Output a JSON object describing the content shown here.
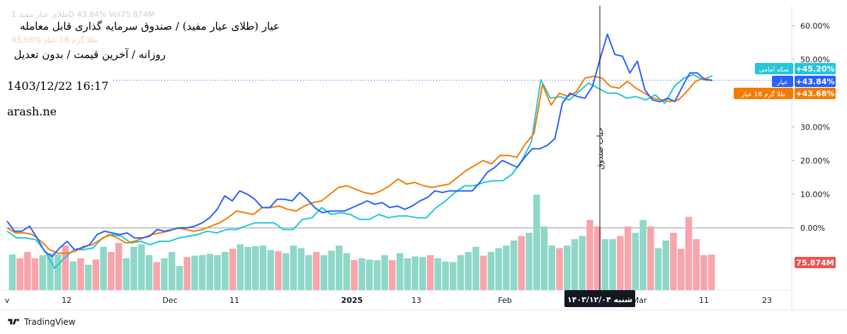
{
  "header": {
    "title": "عیار (طلای عیار مفید) / صندوق سرمایه گذاری قابل معامله",
    "subtitle": "روزانه / آخرین قیمت / بدون تعدیل",
    "datetime": "1403/12/22 16:17",
    "watermark": "arash.ne",
    "legend_faded_1": "طلای عیار مفید 1D 43.84% Vol75.874M",
    "legend_faded_2": "43.68% طلا گرم 18 عیار"
  },
  "footer": {
    "brand": "TradingView"
  },
  "crosshair": {
    "date_label": "شنبه ۱۴۰۳/۱۲/۰۴",
    "event_label": "حباب صندوق"
  },
  "colors": {
    "ayar": "#2962ff",
    "gold18": "#f57c00",
    "coin": "#26c6da",
    "vol_up": "#8fd8c8",
    "vol_down": "#f7a5ab",
    "vol_badge": "#ef5350"
  },
  "chart_data": {
    "type": "line",
    "x_tick_labels": [
      "v",
      "12",
      "Dec",
      "11",
      "2025",
      "13",
      "Feb",
      "Mar",
      "11",
      "23"
    ],
    "y_tick_labels": [
      "60.00%",
      "50.00%",
      "40.00%",
      "30.00%",
      "20.00%",
      "10.00%",
      "0.00%"
    ],
    "ylim": [
      -18.5,
      66
    ],
    "series": [
      {
        "name": "عیار",
        "last_label": "+43.84%",
        "values": [
          2.0,
          -1.0,
          -1.0,
          0.5,
          -3.0,
          -7.0,
          -8.5,
          -6.0,
          -4.0,
          -6.5,
          -6.0,
          -5.0,
          -2.0,
          -1.0,
          -1.5,
          -2.0,
          -1.5,
          -3.0,
          -3.0,
          -2.5,
          -0.5,
          -1.0,
          -0.5,
          0.0,
          0.0,
          0.5,
          1.5,
          3.0,
          5.5,
          9.5,
          8.0,
          11.0,
          10.0,
          8.5,
          6.0,
          6.0,
          8.5,
          8.5,
          8.0,
          10.5,
          8.5,
          6.0,
          4.5,
          5.0,
          5.0,
          5.0,
          6.0,
          7.0,
          8.0,
          7.0,
          7.5,
          6.0,
          6.5,
          5.5,
          6.5,
          8.0,
          9.0,
          11.0,
          10.5,
          11.0,
          11.0,
          11.0,
          11.0,
          13.5,
          16.5,
          18.0,
          20.0,
          19.0,
          18.0,
          21.0,
          23.5,
          23.5,
          24.5,
          26.5,
          37.0,
          40.0,
          39.0,
          38.5,
          42.0,
          50.0,
          57.5,
          51.5,
          51.0,
          46.0,
          49.5,
          41.0,
          38.0,
          37.5,
          38.5,
          37.5,
          42.0,
          46.0,
          46.0,
          44.0,
          43.84
        ]
      },
      {
        "name": "طلا گرم 18 عیار",
        "last_label": "+43.68%",
        "values": [
          0.0,
          -1.5,
          -1.5,
          -2.0,
          -4.0,
          -6.5,
          -7.5,
          -7.5,
          -7.0,
          -5.5,
          -5.0,
          -3.5,
          -2.0,
          -3.0,
          -4.5,
          -4.0,
          -3.0,
          -2.0,
          -1.5,
          -1.0,
          0.0,
          -0.5,
          -1.0,
          -0.5,
          0.5,
          1.5,
          3.0,
          5.0,
          4.5,
          4.0,
          6.0,
          6.0,
          6.5,
          5.5,
          5.0,
          6.5,
          7.5,
          8.0,
          10.0,
          12.0,
          12.5,
          11.5,
          10.5,
          10.0,
          11.0,
          12.5,
          14.5,
          13.0,
          13.5,
          12.5,
          12.0,
          12.5,
          13.0,
          15.0,
          17.0,
          18.5,
          20.0,
          19.0,
          21.5,
          21.5,
          21.0,
          25.0,
          28.0,
          42.5,
          36.5,
          40.0,
          39.0,
          40.5,
          44.5,
          45.0,
          44.5,
          42.0,
          41.5,
          43.5,
          41.5,
          40.0,
          38.5,
          38.0,
          37.5,
          38.0,
          40.5,
          43.5,
          44.5,
          43.68
        ]
      },
      {
        "name": "سکه امامی",
        "last_label": "+45.20%",
        "values": [
          -1.0,
          -3.0,
          -3.0,
          -3.5,
          -7.0,
          -12.0,
          -9.0,
          -6.5,
          -6.5,
          -6.0,
          -3.0,
          -2.0,
          -2.5,
          -4.5,
          -4.0,
          -5.0,
          -4.0,
          -4.0,
          -3.0,
          -2.5,
          -2.0,
          -1.0,
          -1.5,
          -0.5,
          -0.5,
          0.5,
          1.5,
          1.5,
          1.5,
          -0.5,
          -0.5,
          2.5,
          3.0,
          6.0,
          4.0,
          4.5,
          4.0,
          2.5,
          2.5,
          4.0,
          3.0,
          3.5,
          3.5,
          3.0,
          3.0,
          6.0,
          8.0,
          10.5,
          12.5,
          12.5,
          13.5,
          14.0,
          14.0,
          16.0,
          20.0,
          25.5,
          44.0,
          38.5,
          39.0,
          38.0,
          40.5,
          43.0,
          41.5,
          40.0,
          40.0,
          38.5,
          39.0,
          38.0,
          39.5,
          37.0,
          42.0,
          44.5,
          45.5,
          44.0,
          45.2
        ]
      }
    ],
    "volume": {
      "last_label": "75.874M",
      "values": [
        5.6,
        5.0,
        6.0,
        5.0,
        5.5,
        5.8,
        5.6,
        7.0,
        4.5,
        5.0,
        4.0,
        4.8,
        6.8,
        6.0,
        7.4,
        5.0,
        6.8,
        7.2,
        5.5,
        4.4,
        5.0,
        6.0,
        3.8,
        5.2,
        5.4,
        5.5,
        5.7,
        5.5,
        6.0,
        6.5,
        7.2,
        6.8,
        6.9,
        7.0,
        6.3,
        6.1,
        5.8,
        7.0,
        6.6,
        5.5,
        6.0,
        5.5,
        6.2,
        7.0,
        5.8,
        4.7,
        5.0,
        4.8,
        4.7,
        5.5,
        4.7,
        5.8,
        5.0,
        5.3,
        5.2,
        5.5,
        5.0,
        4.5,
        4.4,
        5.5,
        6.0,
        6.8,
        5.4,
        6.0,
        6.6,
        7.0,
        7.8,
        8.5,
        9.0,
        15.0,
        10.0,
        7.0,
        6.6,
        7.0,
        8.0,
        8.5,
        11.0,
        10.0,
        8.0,
        8.0,
        8.5,
        10.0,
        9.0,
        11.0,
        10.0,
        6.6,
        7.8,
        9.0,
        6.5,
        11.5,
        8.0,
        5.5,
        5.6
      ],
      "down_indices": [
        1,
        2,
        3,
        7,
        9,
        11,
        13,
        14,
        19,
        23,
        29,
        35,
        40,
        45,
        50,
        55,
        62,
        67,
        72,
        76,
        77,
        80,
        81,
        84,
        87,
        88,
        89,
        90,
        91,
        92
      ],
      "ylim": [
        0,
        20
      ]
    }
  }
}
